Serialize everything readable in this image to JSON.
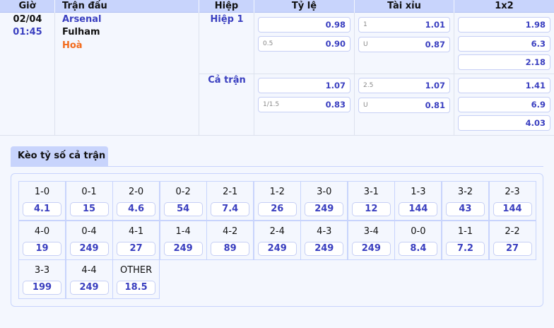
{
  "header": {
    "time": "Giờ",
    "match": "Trận đấu",
    "half": "Hiệp",
    "handicap": "Tỷ lệ",
    "overunder": "Tài xỉu",
    "x12": "1x2"
  },
  "match": {
    "date": "02/04",
    "time": "01:45",
    "home": "Arsenal",
    "away": "Fulham",
    "draw": "Hoà"
  },
  "periods": [
    {
      "label": "Hiệp 1",
      "handicap": [
        {
          "line": "",
          "odds": "0.98"
        },
        {
          "line": "0.5",
          "odds": "0.90"
        }
      ],
      "overunder": [
        {
          "line": "1",
          "odds": "1.01"
        },
        {
          "line": "U",
          "odds": "0.87"
        }
      ],
      "x12": [
        "1.98",
        "6.3",
        "2.18"
      ]
    },
    {
      "label": "Cả trận",
      "handicap": [
        {
          "line": "",
          "odds": "1.07"
        },
        {
          "line": "1/1.5",
          "odds": "0.83"
        }
      ],
      "overunder": [
        {
          "line": "2.5",
          "odds": "1.07"
        },
        {
          "line": "U",
          "odds": "0.81"
        }
      ],
      "x12": [
        "1.41",
        "6.9",
        "4.03"
      ]
    }
  ],
  "correct_score": {
    "tab": "Kèo tỷ số cả trận",
    "items": [
      {
        "score": "1-0",
        "odds": "4.1"
      },
      {
        "score": "0-1",
        "odds": "15"
      },
      {
        "score": "2-0",
        "odds": "4.6"
      },
      {
        "score": "0-2",
        "odds": "54"
      },
      {
        "score": "2-1",
        "odds": "7.4"
      },
      {
        "score": "1-2",
        "odds": "26"
      },
      {
        "score": "3-0",
        "odds": "249"
      },
      {
        "score": "3-1",
        "odds": "12"
      },
      {
        "score": "1-3",
        "odds": "144"
      },
      {
        "score": "3-2",
        "odds": "43"
      },
      {
        "score": "2-3",
        "odds": "144"
      },
      {
        "score": "4-0",
        "odds": "19"
      },
      {
        "score": "0-4",
        "odds": "249"
      },
      {
        "score": "4-1",
        "odds": "27"
      },
      {
        "score": "1-4",
        "odds": "249"
      },
      {
        "score": "4-2",
        "odds": "89"
      },
      {
        "score": "2-4",
        "odds": "249"
      },
      {
        "score": "4-3",
        "odds": "249"
      },
      {
        "score": "3-4",
        "odds": "249"
      },
      {
        "score": "0-0",
        "odds": "8.4"
      },
      {
        "score": "1-1",
        "odds": "7.2"
      },
      {
        "score": "2-2",
        "odds": "27"
      },
      {
        "score": "3-3",
        "odds": "199"
      },
      {
        "score": "4-4",
        "odds": "249"
      },
      {
        "score": "OTHER",
        "odds": "18.5"
      }
    ]
  },
  "colors": {
    "header_bg": "#c8d4fc",
    "accent": "#3a3fc0",
    "draw": "#f26b1d"
  }
}
